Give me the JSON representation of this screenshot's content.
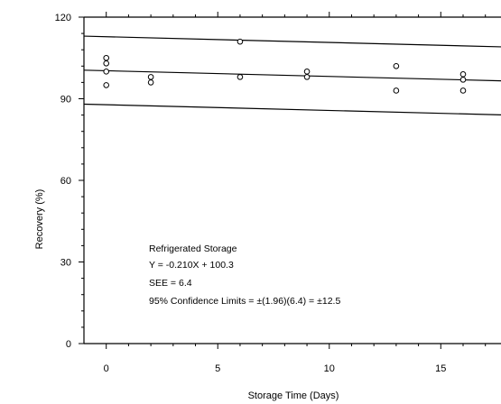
{
  "chart_data": {
    "type": "scatter",
    "title": "",
    "xlabel": "Storage Time (Days)",
    "ylabel": "Recovery (%)",
    "xlim": [
      -1,
      17.7
    ],
    "ylim": [
      0,
      120
    ],
    "xticks": [
      0,
      5,
      10,
      15
    ],
    "yticks": [
      0,
      30,
      60,
      90,
      120
    ],
    "grid": false,
    "series": [
      {
        "marker": "open-circle",
        "points": [
          {
            "x": 0,
            "y": 105
          },
          {
            "x": 0,
            "y": 103
          },
          {
            "x": 0,
            "y": 100
          },
          {
            "x": 0,
            "y": 95
          },
          {
            "x": 2,
            "y": 98
          },
          {
            "x": 2,
            "y": 96
          },
          {
            "x": 6,
            "y": 111
          },
          {
            "x": 6,
            "y": 98
          },
          {
            "x": 9,
            "y": 100
          },
          {
            "x": 9,
            "y": 98
          },
          {
            "x": 13,
            "y": 102
          },
          {
            "x": 13,
            "y": 93
          },
          {
            "x": 16,
            "y": 99
          },
          {
            "x": 16,
            "y": 97
          },
          {
            "x": 16,
            "y": 93
          }
        ]
      }
    ],
    "lines": [
      {
        "role": "regression",
        "slope": -0.21,
        "intercept": 100.3
      },
      {
        "role": "upper-95-confidence-limit",
        "slope": -0.21,
        "intercept": 112.8
      },
      {
        "role": "lower-95-confidence-limit",
        "slope": -0.21,
        "intercept": 87.8
      }
    ],
    "annotations": [
      "Refrigerated Storage",
      "Y = -0.210X + 100.3",
      "SEE = 6.4",
      "95% Confidence Limits = ±(1.96)(6.4)  = ±12.5"
    ]
  }
}
